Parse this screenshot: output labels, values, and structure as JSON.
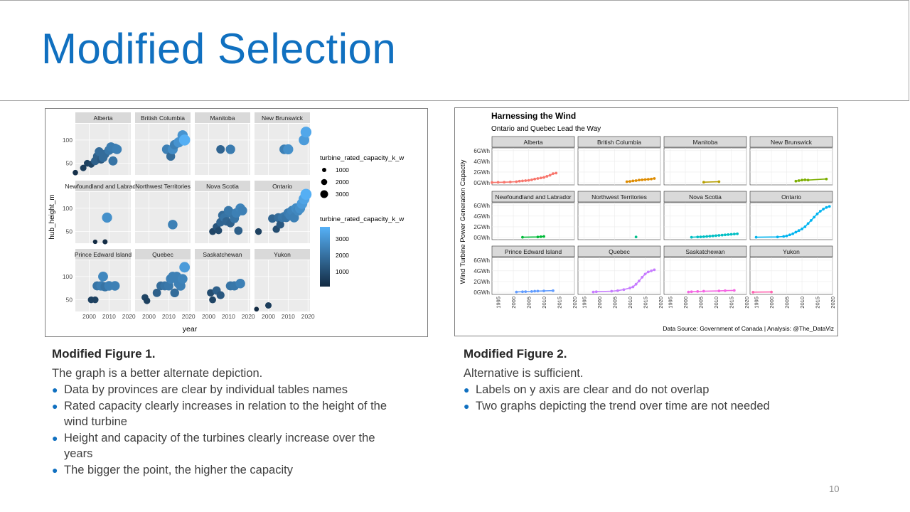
{
  "slide": {
    "title": "Modified Selection",
    "page_number": "10",
    "accent_color": "#1070c0"
  },
  "figure1": {
    "xlabel": "year",
    "ylabel": "hub_height_m",
    "panels": [
      "Alberta",
      "British Columbia",
      "Manitoba",
      "New Brunswick",
      "Newfoundland and Labrador",
      "Northwest Territories",
      "Nova Scotia",
      "Ontario",
      "Prince Edward Island",
      "Quebec",
      "Saskatchewan",
      "Yukon"
    ],
    "x_ticks": [
      "2000",
      "2010",
      "2020"
    ],
    "y_ticks": [
      "50",
      "100"
    ],
    "legend_size_title": "turbine_rated_capacity_k_w",
    "legend_size_items": [
      "1000",
      "2000",
      "3000"
    ],
    "legend_color_title": "turbine_rated_capacity_k_w",
    "legend_color_items": [
      "3000",
      "2000",
      "1000"
    ]
  },
  "figure2": {
    "title": "Harnessing the Wind",
    "subtitle": "Ontario and Quebec Lead the Way",
    "ylabel": "Wind Turbine Power Generation Capactiy",
    "caption": "Data Source: Government of Canada | Analysis: @The_DataViz",
    "panels": [
      "Alberta",
      "British Columbia",
      "Manitoba",
      "New Brunswick",
      "Newfoundland and Labrador",
      "Northwest Territories",
      "Nova Scotia",
      "Ontario",
      "Prince Edward Island",
      "Quebec",
      "Saskatchewan",
      "Yukon"
    ],
    "panel_colors": [
      "#f8766d",
      "#de8c00",
      "#b79f00",
      "#7cae00",
      "#00ba38",
      "#00c08b",
      "#00bfc4",
      "#00b4f0",
      "#619cff",
      "#c77cff",
      "#f564e3",
      "#ff64b0"
    ],
    "y_ticks": [
      "0GWh",
      "2GWh",
      "4GWh",
      "6GWh"
    ],
    "x_ticks": [
      "1995",
      "2000",
      "2005",
      "2010",
      "2015",
      "2020"
    ]
  },
  "chart_data": [
    {
      "type": "scatter",
      "xlabel": "year",
      "ylabel": "hub_height_m",
      "facets": [
        "Alberta",
        "British Columbia",
        "Manitoba",
        "New Brunswick",
        "Newfoundland and Labrador",
        "Northwest Territories",
        "Nova Scotia",
        "Ontario",
        "Prince Edward Island",
        "Quebec",
        "Saskatchewan",
        "Yukon"
      ],
      "xlim": [
        1993,
        2021
      ],
      "ylim": [
        25,
        135
      ],
      "size_legend": [
        1000,
        2000,
        3000
      ],
      "series": [
        {
          "name": "Alberta",
          "points": [
            [
              1993,
              30,
              300
            ],
            [
              1997,
              40,
              600
            ],
            [
              1999,
              50,
              700
            ],
            [
              2001,
              48,
              800
            ],
            [
              2003,
              55,
              1500
            ],
            [
              2004,
              65,
              1500
            ],
            [
              2005,
              75,
              1800
            ],
            [
              2006,
              58,
              1300
            ],
            [
              2007,
              62,
              1800
            ],
            [
              2008,
              70,
              1800
            ],
            [
              2010,
              78,
              2100
            ],
            [
              2011,
              85,
              2200
            ],
            [
              2012,
              55,
              2000
            ],
            [
              2013,
              82,
              2200
            ],
            [
              2014,
              80,
              2300
            ]
          ]
        },
        {
          "name": "British Columbia",
          "points": [
            [
              2009,
              80,
              2300
            ],
            [
              2011,
              65,
              1800
            ],
            [
              2012,
              80,
              2600
            ],
            [
              2013,
              90,
              2300
            ],
            [
              2015,
              95,
              2800
            ],
            [
              2017,
              110,
              2800
            ],
            [
              2018,
              100,
              3500
            ]
          ]
        },
        {
          "name": "Manitoba",
          "points": [
            [
              2006,
              80,
              1600
            ],
            [
              2011,
              80,
              2200
            ]
          ]
        },
        {
          "name": "New Brunswick",
          "points": [
            [
              2008,
              80,
              2300
            ],
            [
              2010,
              80,
              2700
            ],
            [
              2018,
              100,
              3000
            ],
            [
              2019,
              117,
              3300
            ]
          ]
        },
        {
          "name": "Newfoundland and Labrador",
          "points": [
            [
              2003,
              28,
              100
            ],
            [
              2008,
              28,
              200
            ],
            [
              2009,
              80,
              2700
            ]
          ]
        },
        {
          "name": "Northwest Territories",
          "points": [
            [
              2012,
              65,
              2300
            ]
          ]
        },
        {
          "name": "Nova Scotia",
          "points": [
            [
              2002,
              50,
              800
            ],
            [
              2004,
              60,
              1200
            ],
            [
              2005,
              52,
              900
            ],
            [
              2006,
              70,
              1600
            ],
            [
              2007,
              85,
              1800
            ],
            [
              2008,
              80,
              2000
            ],
            [
              2009,
              72,
              1600
            ],
            [
              2010,
              95,
              2100
            ],
            [
              2011,
              68,
              1500
            ],
            [
              2012,
              88,
              2100
            ],
            [
              2013,
              78,
              2000
            ],
            [
              2014,
              90,
              2300
            ],
            [
              2015,
              52,
              1500
            ],
            [
              2016,
              100,
              2400
            ],
            [
              2017,
              95,
              2300
            ]
          ]
        },
        {
          "name": "Ontario",
          "points": [
            [
              1995,
              50,
              700
            ],
            [
              2002,
              78,
              1600
            ],
            [
              2004,
              55,
              1000
            ],
            [
              2005,
              80,
              1800
            ],
            [
              2006,
              65,
              1300
            ],
            [
              2007,
              80,
              2000
            ],
            [
              2008,
              82,
              2100
            ],
            [
              2009,
              80,
              2000
            ],
            [
              2010,
              90,
              2200
            ],
            [
              2011,
              85,
              2300
            ],
            [
              2012,
              95,
              2400
            ],
            [
              2013,
              80,
              2300
            ],
            [
              2014,
              100,
              2600
            ],
            [
              2015,
              95,
              2500
            ],
            [
              2016,
              100,
              2700
            ],
            [
              2017,
              110,
              3000
            ],
            [
              2018,
              120,
              3200
            ],
            [
              2019,
              130,
              3500
            ]
          ]
        },
        {
          "name": "Prince Edward Island",
          "points": [
            [
              2001,
              50,
              700
            ],
            [
              2003,
              50,
              700
            ],
            [
              2004,
              80,
              2000
            ],
            [
              2006,
              80,
              2200
            ],
            [
              2007,
              100,
              2500
            ],
            [
              2008,
              78,
              2000
            ],
            [
              2010,
              80,
              2300
            ],
            [
              2013,
              80,
              2300
            ]
          ]
        },
        {
          "name": "Quebec",
          "points": [
            [
              1998,
              55,
              800
            ],
            [
              1999,
              48,
              700
            ],
            [
              2004,
              65,
              1500
            ],
            [
              2006,
              80,
              1800
            ],
            [
              2008,
              80,
              2000
            ],
            [
              2010,
              80,
              2100
            ],
            [
              2011,
              95,
              2300
            ],
            [
              2012,
              100,
              2300
            ],
            [
              2013,
              65,
              1800
            ],
            [
              2014,
              100,
              2300
            ],
            [
              2015,
              85,
              2300
            ],
            [
              2016,
              80,
              2300
            ],
            [
              2017,
              95,
              2400
            ],
            [
              2018,
              120,
              3000
            ]
          ]
        },
        {
          "name": "Saskatchewan",
          "points": [
            [
              2001,
              65,
              1000
            ],
            [
              2002,
              50,
              800
            ],
            [
              2004,
              70,
              1500
            ],
            [
              2006,
              60,
              1300
            ],
            [
              2011,
              80,
              2000
            ],
            [
              2013,
              80,
              2100
            ],
            [
              2016,
              85,
              2300
            ]
          ]
        },
        {
          "name": "Yukon",
          "points": [
            [
              1994,
              30,
              150
            ],
            [
              2000,
              38,
              600
            ]
          ]
        }
      ]
    },
    {
      "type": "line",
      "title": "Harnessing the Wind",
      "subtitle": "Ontario and Quebec Lead the Way",
      "xlabel": "",
      "ylabel": "Wind Turbine Power Generation Capactiy",
      "facets": [
        "Alberta",
        "British Columbia",
        "Manitoba",
        "New Brunswick",
        "Newfoundland and Labrador",
        "Northwest Territories",
        "Nova Scotia",
        "Ontario",
        "Prince Edward Island",
        "Quebec",
        "Saskatchewan",
        "Yukon"
      ],
      "xlim": [
        1993,
        2020
      ],
      "ylim": [
        0,
        6.5
      ],
      "y_unit": "GWh",
      "series": [
        {
          "name": "Alberta",
          "x": [
            1993,
            1995,
            1997,
            1999,
            2001,
            2002,
            2003,
            2004,
            2005,
            2006,
            2007,
            2008,
            2009,
            2010,
            2011,
            2012,
            2013,
            2014
          ],
          "y": [
            0.05,
            0.08,
            0.1,
            0.15,
            0.2,
            0.3,
            0.35,
            0.4,
            0.45,
            0.55,
            0.7,
            0.8,
            0.9,
            1.0,
            1.2,
            1.4,
            1.7,
            1.8
          ]
        },
        {
          "name": "British Columbia",
          "x": [
            2009,
            2010,
            2011,
            2012,
            2013,
            2014,
            2015,
            2016,
            2017,
            2018
          ],
          "y": [
            0.2,
            0.25,
            0.35,
            0.4,
            0.5,
            0.55,
            0.6,
            0.65,
            0.7,
            0.8
          ]
        },
        {
          "name": "Manitoba",
          "x": [
            2006,
            2011
          ],
          "y": [
            0.1,
            0.2
          ]
        },
        {
          "name": "New Brunswick",
          "x": [
            2008,
            2009,
            2010,
            2011,
            2012,
            2018
          ],
          "y": [
            0.3,
            0.4,
            0.5,
            0.55,
            0.5,
            0.7
          ]
        },
        {
          "name": "Newfoundland and Labrador",
          "x": [
            2003,
            2008,
            2009,
            2010
          ],
          "y": [
            0.05,
            0.1,
            0.15,
            0.2
          ]
        },
        {
          "name": "Northwest Territories",
          "x": [
            2012
          ],
          "y": [
            0.1
          ]
        },
        {
          "name": "Nova Scotia",
          "x": [
            2002,
            2004,
            2005,
            2006,
            2007,
            2008,
            2009,
            2010,
            2011,
            2012,
            2013,
            2014,
            2015,
            2016,
            2017
          ],
          "y": [
            0.05,
            0.1,
            0.12,
            0.15,
            0.2,
            0.25,
            0.3,
            0.35,
            0.4,
            0.45,
            0.5,
            0.55,
            0.6,
            0.65,
            0.7
          ]
        },
        {
          "name": "Ontario",
          "x": [
            1995,
            2002,
            2004,
            2005,
            2006,
            2007,
            2008,
            2009,
            2010,
            2011,
            2012,
            2013,
            2014,
            2015,
            2016,
            2017,
            2018,
            2019
          ],
          "y": [
            0.05,
            0.1,
            0.2,
            0.3,
            0.5,
            0.7,
            1.0,
            1.3,
            1.6,
            2.0,
            2.6,
            3.2,
            3.8,
            4.4,
            4.9,
            5.3,
            5.6,
            5.8
          ]
        },
        {
          "name": "Prince Edward Island",
          "x": [
            2001,
            2003,
            2004,
            2006,
            2007,
            2008,
            2010,
            2013
          ],
          "y": [
            0.05,
            0.1,
            0.12,
            0.15,
            0.2,
            0.22,
            0.25,
            0.3
          ]
        },
        {
          "name": "Quebec",
          "x": [
            1998,
            1999,
            2004,
            2006,
            2008,
            2010,
            2011,
            2012,
            2013,
            2014,
            2015,
            2016,
            2017,
            2018
          ],
          "y": [
            0.05,
            0.1,
            0.2,
            0.3,
            0.5,
            0.8,
            1.0,
            1.5,
            2.1,
            2.8,
            3.4,
            3.8,
            4.0,
            4.2
          ]
        },
        {
          "name": "Saskatchewan",
          "x": [
            2001,
            2002,
            2004,
            2006,
            2011,
            2013,
            2016
          ],
          "y": [
            0.05,
            0.1,
            0.15,
            0.2,
            0.25,
            0.3,
            0.35
          ]
        },
        {
          "name": "Yukon",
          "x": [
            1994,
            2000
          ],
          "y": [
            0.02,
            0.05
          ]
        }
      ]
    }
  ],
  "caption1": {
    "title": "Modified Figure 1.",
    "lead": "The graph is a better alternate depiction.",
    "bullets": [
      "Data by provinces are clear by individual tables names",
      "Rated capacity clearly increases in relation to the height of the wind turbine",
      "Height and capacity of the turbines clearly increase over the years",
      "The bigger the point, the higher the capacity"
    ]
  },
  "caption2": {
    "title": "Modified Figure 2.",
    "lead": "Alternative is sufficient.",
    "bullets": [
      "Labels on y axis are clear and do not overlap",
      "Two graphs depicting the trend over time are not needed"
    ]
  }
}
